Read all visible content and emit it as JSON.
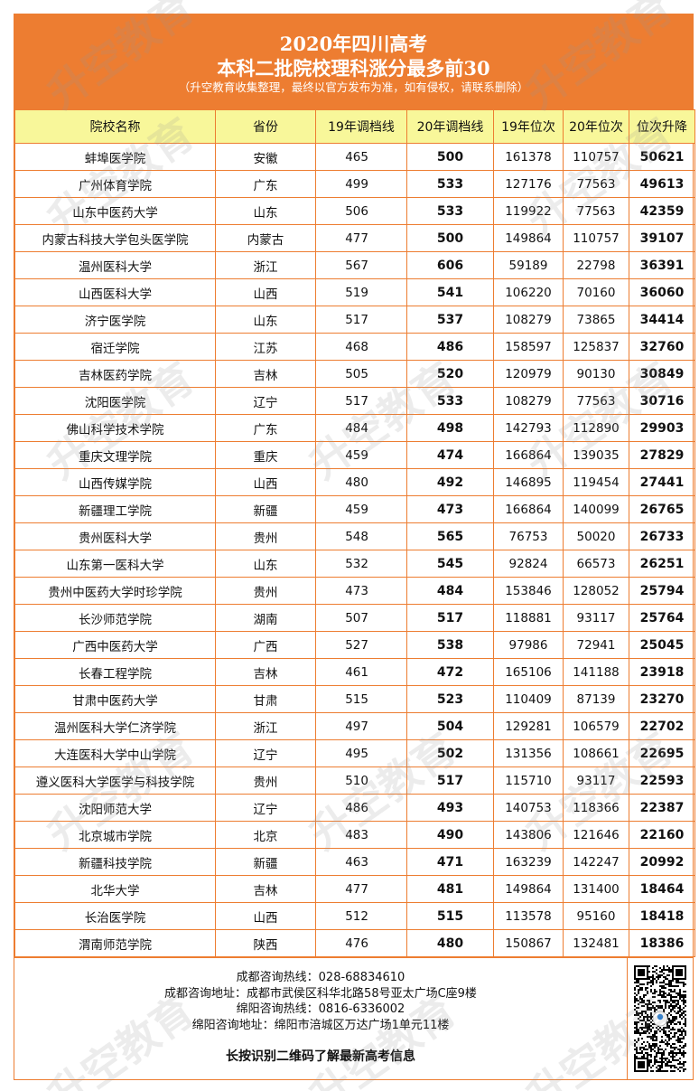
{
  "header": {
    "title_line1": "2020年四川高考",
    "title_line2": "本科二批院校理科涨分最多前30",
    "note": "（升空教育收集整理，最终以官方发布为准，如有侵权，请联系删除）"
  },
  "table": {
    "columns": [
      "院校名称",
      "省份",
      "19年调档线",
      "20年调档线",
      "19年位次",
      "20年位次",
      "位次升降"
    ],
    "rows": [
      [
        "蚌埠医学院",
        "安徽",
        "465",
        "500",
        "161378",
        "110757",
        "50621"
      ],
      [
        "广州体育学院",
        "广东",
        "499",
        "533",
        "127176",
        "77563",
        "49613"
      ],
      [
        "山东中医药大学",
        "山东",
        "506",
        "533",
        "119922",
        "77563",
        "42359"
      ],
      [
        "内蒙古科技大学包头医学院",
        "内蒙古",
        "477",
        "500",
        "149864",
        "110757",
        "39107"
      ],
      [
        "温州医科大学",
        "浙江",
        "567",
        "606",
        "59189",
        "22798",
        "36391"
      ],
      [
        "山西医科大学",
        "山西",
        "519",
        "541",
        "106220",
        "70160",
        "36060"
      ],
      [
        "济宁医学院",
        "山东",
        "517",
        "537",
        "108279",
        "73865",
        "34414"
      ],
      [
        "宿迁学院",
        "江苏",
        "468",
        "486",
        "158597",
        "125837",
        "32760"
      ],
      [
        "吉林医药学院",
        "吉林",
        "505",
        "520",
        "120979",
        "90130",
        "30849"
      ],
      [
        "沈阳医学院",
        "辽宁",
        "517",
        "533",
        "108279",
        "77563",
        "30716"
      ],
      [
        "佛山科学技术学院",
        "广东",
        "484",
        "498",
        "142793",
        "112890",
        "29903"
      ],
      [
        "重庆文理学院",
        "重庆",
        "459",
        "474",
        "166864",
        "139035",
        "27829"
      ],
      [
        "山西传媒学院",
        "山西",
        "480",
        "492",
        "146895",
        "119454",
        "27441"
      ],
      [
        "新疆理工学院",
        "新疆",
        "459",
        "473",
        "166864",
        "140099",
        "26765"
      ],
      [
        "贵州医科大学",
        "贵州",
        "548",
        "565",
        "76753",
        "50020",
        "26733"
      ],
      [
        "山东第一医科大学",
        "山东",
        "532",
        "545",
        "92824",
        "66573",
        "26251"
      ],
      [
        "贵州中医药大学时珍学院",
        "贵州",
        "473",
        "484",
        "153846",
        "128052",
        "25794"
      ],
      [
        "长沙师范学院",
        "湖南",
        "507",
        "517",
        "118881",
        "93117",
        "25764"
      ],
      [
        "广西中医药大学",
        "广西",
        "527",
        "538",
        "97986",
        "72941",
        "25045"
      ],
      [
        "长春工程学院",
        "吉林",
        "461",
        "472",
        "165106",
        "141188",
        "23918"
      ],
      [
        "甘肃中医药大学",
        "甘肃",
        "515",
        "523",
        "110409",
        "87139",
        "23270"
      ],
      [
        "温州医科大学仁济学院",
        "浙江",
        "497",
        "504",
        "129281",
        "106579",
        "22702"
      ],
      [
        "大连医科大学中山学院",
        "辽宁",
        "495",
        "502",
        "131356",
        "108661",
        "22695"
      ],
      [
        "遵义医科大学医学与科技学院",
        "贵州",
        "510",
        "517",
        "115710",
        "93117",
        "22593"
      ],
      [
        "沈阳师范大学",
        "辽宁",
        "486",
        "493",
        "140753",
        "118366",
        "22387"
      ],
      [
        "北京城市学院",
        "北京",
        "483",
        "490",
        "143806",
        "121646",
        "22160"
      ],
      [
        "新疆科技学院",
        "新疆",
        "463",
        "471",
        "163239",
        "142247",
        "20992"
      ],
      [
        "北华大学",
        "吉林",
        "477",
        "481",
        "149864",
        "131400",
        "18464"
      ],
      [
        "长治医学院",
        "山西",
        "512",
        "515",
        "113578",
        "95160",
        "18418"
      ],
      [
        "渭南师范学院",
        "陕西",
        "476",
        "480",
        "150867",
        "132481",
        "18386"
      ]
    ]
  },
  "footer": {
    "lines": [
      "成都咨询热线：028-68834610",
      "成都咨询地址：成都市武侯区科华北路58号亚太广场C座9楼",
      "绵阳咨询热线：0816-6336002",
      "绵阳咨询地址：绵阳市涪城区万达广场1单元11楼"
    ],
    "cta": "长按识别二维码了解最新高考信息"
  },
  "watermark": "升空教育",
  "colors": {
    "accent": "#ed7d31",
    "header_row": "#f8f79a"
  },
  "icons": {
    "qr": "qr-code-icon"
  }
}
